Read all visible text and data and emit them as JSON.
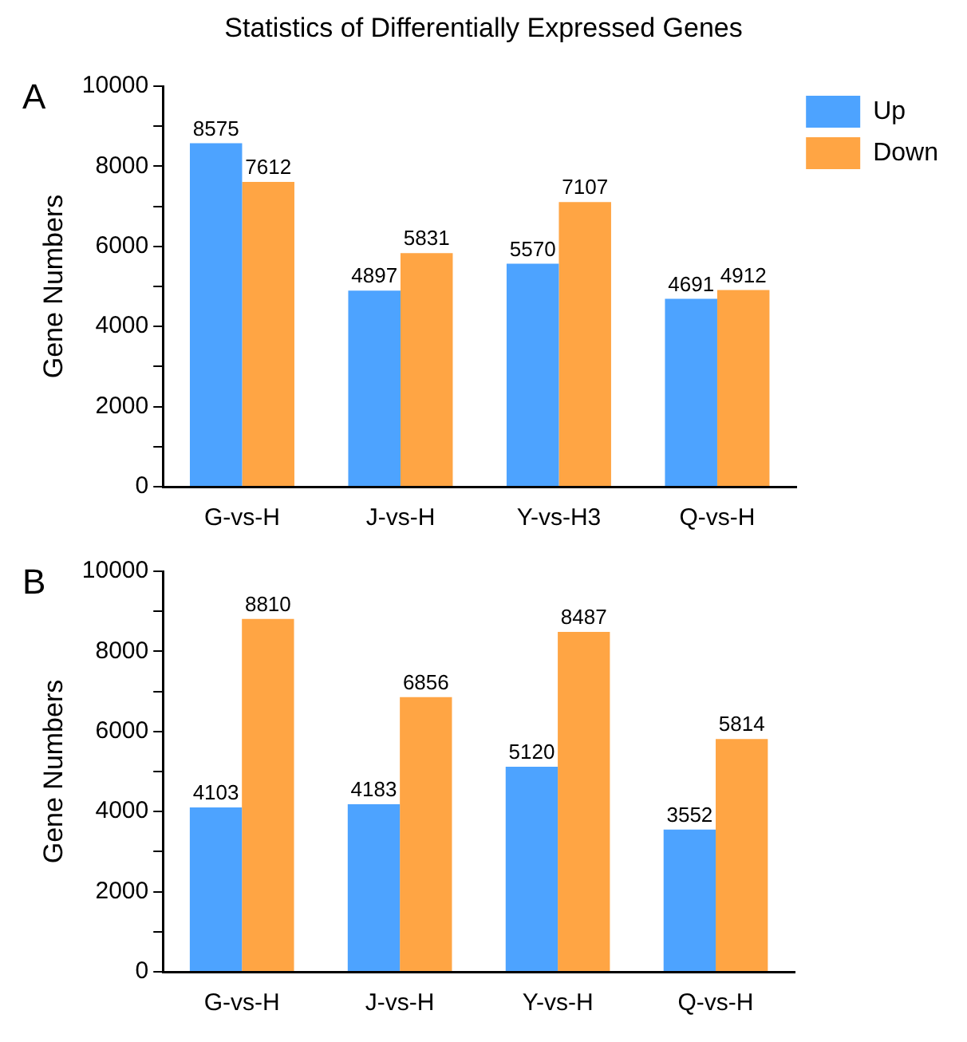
{
  "chart_data": [
    {
      "type": "bar",
      "title": "Statistics of Differentially Expressed Genes",
      "annotations": [
        "A"
      ],
      "ylabel": "Gene Numbers",
      "categories": [
        "G-vs-H",
        "J-vs-H",
        "Y-vs-H3",
        "Q-vs-H"
      ],
      "series": [
        {
          "name": "Up",
          "color": "#4da3ff",
          "values": [
            8575,
            4897,
            5570,
            4691
          ]
        },
        {
          "name": "Down",
          "color": "#ffa544",
          "values": [
            7612,
            5831,
            7107,
            4912
          ]
        }
      ],
      "ylim": [
        0,
        10000
      ],
      "yticks": [
        0,
        {
          "value": 1000,
          "label": null
        },
        2000,
        {
          "value": 3000,
          "label": null
        },
        4000,
        {
          "value": 5000,
          "label": null
        },
        6000,
        {
          "value": 7000,
          "label": null
        },
        8000,
        {
          "value": 9000,
          "label": null
        },
        10000
      ],
      "grid": false,
      "legend": "top right",
      "data_labels": true
    },
    {
      "type": "bar",
      "annotations": [
        "B"
      ],
      "ylabel": "Gene Numbers",
      "categories": [
        "G-vs-H",
        "J-vs-H",
        "Y-vs-H",
        "Q-vs-H"
      ],
      "series": [
        {
          "color": "#4da3ff",
          "values": [
            4103,
            4183,
            5120,
            3552
          ]
        },
        {
          "color": "#ffa544",
          "values": [
            8810,
            6856,
            8487,
            5814
          ]
        }
      ],
      "ylim": [
        0,
        10000
      ],
      "yticks": [
        0,
        {
          "value": 1000,
          "label": null
        },
        2000,
        {
          "value": 3000,
          "label": null
        },
        4000,
        {
          "value": 5000,
          "label": null
        },
        6000,
        {
          "value": 7000,
          "label": null
        },
        8000,
        {
          "value": 9000,
          "label": null
        },
        10000
      ],
      "grid": false,
      "data_labels": true
    }
  ]
}
